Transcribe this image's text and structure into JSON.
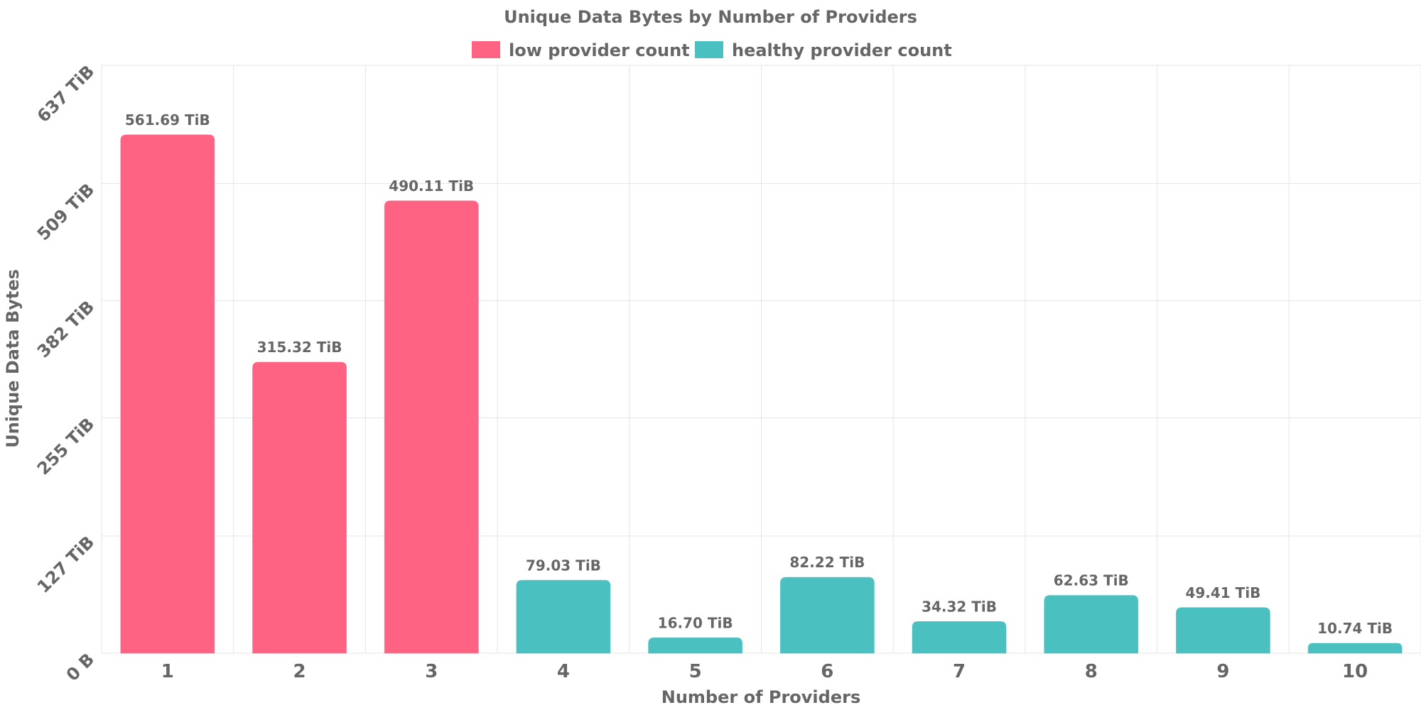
{
  "chart_data": {
    "type": "bar",
    "title": "Unique Data Bytes by Number of Providers",
    "xlabel": "Number of Providers",
    "ylabel": "Unique Data Bytes",
    "categories": [
      "1",
      "2",
      "3",
      "4",
      "5",
      "6",
      "7",
      "8",
      "9",
      "10"
    ],
    "values": [
      561.69,
      315.32,
      490.11,
      79.03,
      16.7,
      82.22,
      34.32,
      62.63,
      49.41,
      10.74
    ],
    "value_labels": [
      "561.69 TiB",
      "315.32 TiB",
      "490.11 TiB",
      "79.03 TiB",
      "16.70 TiB",
      "82.22 TiB",
      "34.32 TiB",
      "62.63 TiB",
      "49.41 TiB",
      "10.74 TiB"
    ],
    "unit": "TiB",
    "bar_groups": [
      "low provider count",
      "low provider count",
      "low provider count",
      "healthy provider count",
      "healthy provider count",
      "healthy provider count",
      "healthy provider count",
      "healthy provider count",
      "healthy provider count",
      "healthy provider count"
    ],
    "legend": {
      "position": "top-center",
      "items": [
        {
          "label": "low provider count",
          "color": "#ff6384"
        },
        {
          "label": "healthy provider count",
          "color": "#4bc0c0"
        }
      ]
    },
    "ylim": [
      0,
      637
    ],
    "yticks": [
      0,
      127,
      255,
      382,
      509,
      637
    ],
    "ytick_labels": [
      "0 B",
      "127 TiB",
      "255 TiB",
      "382 TiB",
      "509 TiB",
      "637 TiB"
    ],
    "grid": true,
    "colors": {
      "low": "#ff6384",
      "healthy": "#4bc0c0",
      "text": "#666666",
      "grid": "#e5e5e5"
    }
  }
}
